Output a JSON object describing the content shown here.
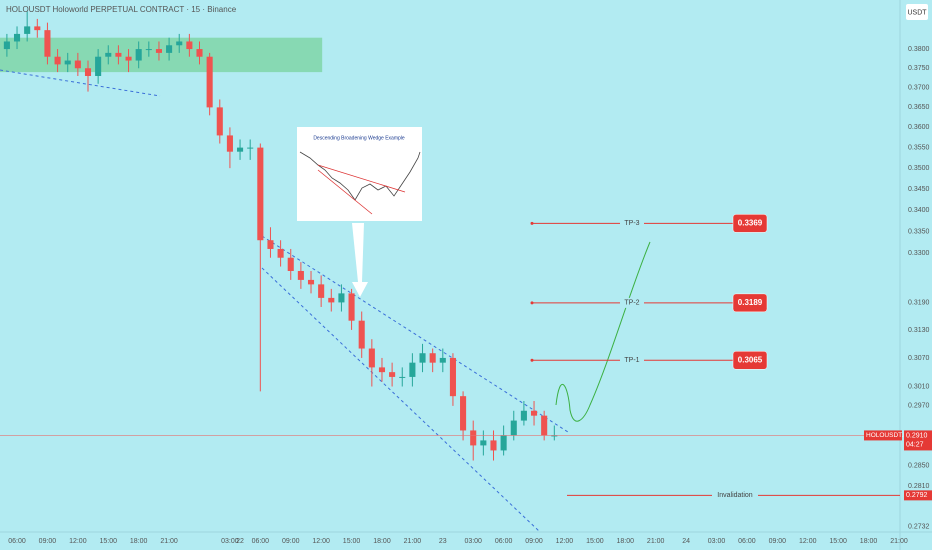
{
  "chart_data": {
    "type": "candlestick",
    "title": "HOLOUSDT Holoworld PERPETUAL CONTRACT · 15 · Binance",
    "currency_button": "USDT",
    "log_scale": true,
    "grid": false,
    "up_color": "#26a69a",
    "down_color": "#ef5350",
    "x": [
      -1,
      0,
      1,
      2,
      3,
      4,
      5,
      6,
      7,
      8,
      9,
      10,
      11,
      12,
      13,
      14,
      15,
      16,
      17,
      18,
      19,
      20,
      21,
      22,
      23,
      24,
      25,
      26,
      27,
      28,
      29,
      30,
      31,
      32,
      33,
      34,
      35,
      36,
      37,
      38,
      39,
      40,
      41,
      42,
      43,
      44,
      45,
      46,
      47,
      48,
      49,
      50,
      51,
      52,
      53
    ],
    "open": [
      0.38,
      0.382,
      0.384,
      0.386,
      0.385,
      0.378,
      0.376,
      0.377,
      0.375,
      0.373,
      0.378,
      0.379,
      0.378,
      0.377,
      0.38,
      0.38,
      0.379,
      0.381,
      0.382,
      0.38,
      0.378,
      0.365,
      0.358,
      0.354,
      0.355,
      0.355,
      0.333,
      0.331,
      0.329,
      0.326,
      0.324,
      0.323,
      0.32,
      0.319,
      0.321,
      0.315,
      0.309,
      0.305,
      0.304,
      0.303,
      0.303,
      0.306,
      0.308,
      0.306,
      0.307,
      0.299,
      0.292,
      0.289,
      0.29,
      0.288,
      0.291,
      0.294,
      0.296,
      0.295,
      0.291
    ],
    "high": [
      0.384,
      0.386,
      0.39,
      0.388,
      0.387,
      0.38,
      0.379,
      0.379,
      0.377,
      0.38,
      0.381,
      0.381,
      0.38,
      0.382,
      0.382,
      0.382,
      0.383,
      0.384,
      0.384,
      0.382,
      0.379,
      0.367,
      0.36,
      0.357,
      0.357,
      0.356,
      0.336,
      0.333,
      0.331,
      0.328,
      0.326,
      0.325,
      0.322,
      0.323,
      0.322,
      0.317,
      0.311,
      0.307,
      0.306,
      0.305,
      0.308,
      0.31,
      0.309,
      0.309,
      0.308,
      0.3,
      0.294,
      0.292,
      0.292,
      0.293,
      0.296,
      0.298,
      0.298,
      0.296,
      0.293
    ],
    "low": [
      0.378,
      0.38,
      0.382,
      0.383,
      0.376,
      0.374,
      0.374,
      0.373,
      0.369,
      0.371,
      0.376,
      0.376,
      0.374,
      0.375,
      0.378,
      0.377,
      0.377,
      0.379,
      0.378,
      0.376,
      0.363,
      0.356,
      0.35,
      0.352,
      0.352,
      0.3,
      0.329,
      0.327,
      0.324,
      0.322,
      0.321,
      0.318,
      0.317,
      0.317,
      0.313,
      0.307,
      0.301,
      0.302,
      0.301,
      0.301,
      0.301,
      0.304,
      0.304,
      0.304,
      0.297,
      0.29,
      0.286,
      0.287,
      0.286,
      0.287,
      0.29,
      0.293,
      0.293,
      0.29,
      0.29
    ],
    "close": [
      0.382,
      0.384,
      0.386,
      0.385,
      0.378,
      0.376,
      0.377,
      0.375,
      0.373,
      0.378,
      0.379,
      0.378,
      0.377,
      0.38,
      0.38,
      0.379,
      0.381,
      0.382,
      0.38,
      0.378,
      0.365,
      0.358,
      0.354,
      0.355,
      0.355,
      0.333,
      0.331,
      0.329,
      0.326,
      0.324,
      0.323,
      0.32,
      0.319,
      0.321,
      0.315,
      0.309,
      0.305,
      0.304,
      0.303,
      0.303,
      0.306,
      0.308,
      0.306,
      0.307,
      0.299,
      0.292,
      0.289,
      0.29,
      0.288,
      0.291,
      0.294,
      0.296,
      0.295,
      0.291,
      0.291
    ],
    "xlim": [
      -1.68,
      87.1
    ],
    "ylim": [
      0.2726,
      0.3931
    ],
    "xticks": [
      {
        "value": 0,
        "label": "06:00"
      },
      {
        "value": 3,
        "label": "09:00"
      },
      {
        "value": 6,
        "label": "12:00"
      },
      {
        "value": 9,
        "label": "15:00"
      },
      {
        "value": 12,
        "label": "18:00"
      },
      {
        "value": 15,
        "label": "21:00"
      },
      22,
      {
        "value": 21,
        "label": "03:00"
      },
      {
        "value": 24,
        "label": "06:00"
      },
      {
        "value": 27,
        "label": "09:00"
      },
      {
        "value": 30,
        "label": "12:00"
      },
      {
        "value": 33,
        "label": "15:00"
      },
      {
        "value": 36,
        "label": "18:00"
      },
      {
        "value": 39,
        "label": "21:00"
      },
      {
        "value": 42,
        "label": "23"
      },
      {
        "value": 45,
        "label": "03:00"
      },
      {
        "value": 48,
        "label": "06:00"
      },
      {
        "value": 51,
        "label": "09:00"
      },
      {
        "value": 54,
        "label": "12:00"
      },
      {
        "value": 57,
        "label": "15:00"
      },
      {
        "value": 60,
        "label": "18:00"
      },
      {
        "value": 63,
        "label": "21:00"
      },
      {
        "value": 66,
        "label": "24"
      },
      {
        "value": 69,
        "label": "03:00"
      },
      {
        "value": 72,
        "label": "06:00"
      },
      {
        "value": 75,
        "label": "09:00"
      },
      {
        "value": 78,
        "label": "12:00"
      },
      {
        "value": 81,
        "label": "15:00"
      },
      {
        "value": 84,
        "label": "18:00"
      },
      {
        "value": 87,
        "label": "21:00"
      }
    ],
    "yticks": [
      {
        "value": 0.38,
        "label": "0.3800"
      },
      {
        "value": 0.375,
        "label": "0.3750"
      },
      {
        "value": 0.37,
        "label": "0.3700"
      },
      {
        "value": 0.365,
        "label": "0.3650"
      },
      {
        "value": 0.36,
        "label": "0.3600"
      },
      {
        "value": 0.355,
        "label": "0.3550"
      },
      {
        "value": 0.35,
        "label": "0.3500"
      },
      {
        "value": 0.345,
        "label": "0.3450"
      },
      {
        "value": 0.34,
        "label": "0.3400"
      },
      {
        "value": 0.335,
        "label": "0.3350"
      },
      {
        "value": 0.33,
        "label": "0.3300"
      },
      {
        "value": 0.319,
        "label": "0.3190"
      },
      {
        "value": 0.313,
        "label": "0.3130"
      },
      {
        "value": 0.307,
        "label": "0.3070"
      },
      {
        "value": 0.301,
        "label": "0.3010"
      },
      {
        "value": 0.297,
        "label": "0.2970"
      },
      {
        "value": 0.285,
        "label": "0.2850"
      },
      {
        "value": 0.281,
        "label": "0.2810"
      },
      {
        "value": 0.2732,
        "label": "0.2732"
      }
    ],
    "zone": {
      "xlim": [
        -1.68,
        30.1
      ],
      "ylim": [
        0.374,
        0.383
      ],
      "color": "#7fd6a8"
    },
    "levels": [
      {
        "name": "TP-3",
        "value": 0.3369
      },
      {
        "name": "TP-2",
        "value": 0.3189
      },
      {
        "name": "TP-1",
        "value": 0.3065
      }
    ],
    "invalidation": {
      "name": "Invalidation",
      "value": 0.2792
    },
    "last_price": {
      "value": 0.291,
      "label": "0.2910"
    },
    "symbol": "HOLOUSDT.P",
    "countdown": "04:27",
    "inset_title": "Descending Broadening Wedge Example"
  }
}
